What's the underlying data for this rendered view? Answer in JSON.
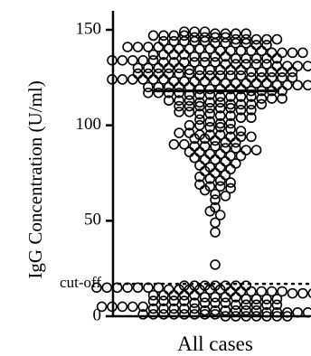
{
  "chart_data": {
    "type": "scatter",
    "ylabel": "IgG Concentration (U/ml)",
    "ylim": [
      0,
      160
    ],
    "yticks": [
      0,
      50,
      100,
      150
    ],
    "categories": [
      "All cases"
    ],
    "cutoff": {
      "label": "cut-off",
      "value": 17
    },
    "mean": 118,
    "series": [
      {
        "values": [
          149,
          149,
          149,
          148,
          148,
          148,
          148,
          147,
          147,
          147,
          147,
          146,
          146,
          146,
          146,
          145,
          145,
          145,
          145,
          145,
          144,
          144,
          144,
          144,
          144,
          143,
          143,
          143,
          143,
          142,
          142,
          141,
          141,
          141,
          141,
          140,
          140,
          140,
          140,
          140,
          139,
          139,
          139,
          139,
          139,
          138,
          138,
          138,
          138,
          137,
          137,
          137,
          137,
          136,
          136,
          136,
          136,
          135,
          135,
          135,
          135,
          135,
          134,
          134,
          134,
          134,
          134,
          133,
          133,
          133,
          133,
          133,
          133,
          132,
          132,
          132,
          132,
          132,
          131,
          131,
          131,
          131,
          131,
          130,
          130,
          130,
          130,
          130,
          129,
          129,
          129,
          129,
          129,
          129,
          128,
          128,
          128,
          128,
          128,
          127,
          127,
          127,
          127,
          127,
          127,
          126,
          126,
          126,
          126,
          126,
          125,
          125,
          125,
          125,
          125,
          124,
          124,
          124,
          124,
          124,
          124,
          123,
          123,
          123,
          123,
          123,
          122,
          122,
          122,
          122,
          122,
          121,
          121,
          121,
          121,
          121,
          120,
          120,
          120,
          120,
          120,
          119,
          119,
          119,
          119,
          119,
          118,
          118,
          118,
          118,
          117,
          117,
          117,
          117,
          116,
          116,
          116,
          115,
          115,
          115,
          115,
          114,
          114,
          114,
          113,
          113,
          113,
          112,
          112,
          112,
          111,
          111,
          111,
          111,
          110,
          110,
          110,
          109,
          109,
          109,
          108,
          108,
          107,
          107,
          106,
          106,
          105,
          105,
          104,
          104,
          103,
          102,
          101,
          101,
          100,
          100,
          99,
          99,
          98,
          97,
          96,
          96,
          95,
          95,
          95,
          94,
          94,
          94,
          93,
          93,
          92,
          91,
          91,
          90,
          90,
          89,
          89,
          89,
          88,
          88,
          87,
          87,
          86,
          86,
          85,
          85,
          84,
          84,
          83,
          82,
          82,
          81,
          80,
          79,
          78,
          78,
          77,
          76,
          75,
          74,
          73,
          72,
          71,
          70,
          69,
          68,
          68,
          67,
          66,
          64,
          63,
          61,
          57,
          55,
          53,
          49,
          44,
          27,
          16,
          16,
          16,
          16,
          16,
          16,
          16,
          15,
          15,
          15,
          15,
          15,
          15,
          15,
          14,
          14,
          14,
          14,
          14,
          14,
          13,
          13,
          13,
          13,
          13,
          13,
          12,
          12,
          12,
          12,
          12,
          11,
          11,
          11,
          11,
          11,
          10,
          10,
          10,
          10,
          9,
          9,
          9,
          9,
          8,
          8,
          8,
          8,
          7,
          7,
          7,
          7,
          6,
          6,
          6,
          6,
          6,
          5,
          5,
          5,
          5,
          5,
          4,
          4,
          4,
          4,
          4,
          3,
          3,
          3,
          3,
          3,
          3,
          2,
          2,
          2,
          2,
          2,
          2,
          2,
          1,
          1,
          1,
          1,
          1,
          1,
          1,
          1,
          0,
          0,
          0,
          0,
          0,
          0,
          0
        ]
      }
    ]
  }
}
